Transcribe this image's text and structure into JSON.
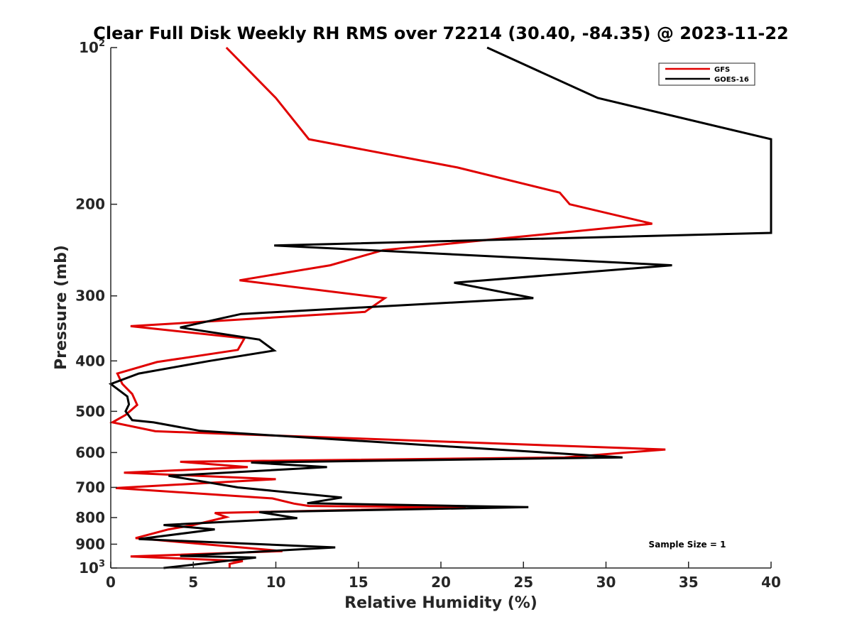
{
  "chart_data": {
    "type": "line",
    "title": "Clear Full Disk Weekly RH RMS over 72214 (30.40, -84.35) @ 2023-11-22",
    "xlabel": "Relative Humidity (%)",
    "ylabel": "Pressure (mb)",
    "xlim": [
      0,
      40
    ],
    "ylim": [
      100,
      1000
    ],
    "yscale": "log",
    "y_reversed": true,
    "xticks": [
      0,
      5,
      10,
      15,
      20,
      25,
      30,
      35,
      40
    ],
    "xtick_labels": [
      "0",
      "5",
      "10",
      "15",
      "20",
      "25",
      "30",
      "35",
      "40"
    ],
    "yticks": [
      {
        "value": 100,
        "label": "10",
        "exp": "2"
      },
      {
        "value": 200,
        "label": "200"
      },
      {
        "value": 300,
        "label": "300"
      },
      {
        "value": 400,
        "label": "400"
      },
      {
        "value": 500,
        "label": "500"
      },
      {
        "value": 600,
        "label": "600"
      },
      {
        "value": 700,
        "label": "700"
      },
      {
        "value": 800,
        "label": "800"
      },
      {
        "value": 900,
        "label": "900"
      },
      {
        "value": 1000,
        "label": "10",
        "exp": "3"
      }
    ],
    "legend": {
      "placement": "top-right"
    },
    "annotation": "Sample Size = 1",
    "series": [
      {
        "name": "GFS",
        "color": "#e00000",
        "points": [
          [
            7.0,
            100
          ],
          [
            10.0,
            125
          ],
          [
            12.0,
            150
          ],
          [
            21.0,
            170
          ],
          [
            27.2,
            190
          ],
          [
            27.8,
            200
          ],
          [
            32.8,
            218
          ],
          [
            16.5,
            245
          ],
          [
            13.3,
            262
          ],
          [
            7.8,
            280
          ],
          [
            16.6,
            303
          ],
          [
            15.4,
            322
          ],
          [
            1.2,
            343
          ],
          [
            8.1,
            362
          ],
          [
            7.7,
            381
          ],
          [
            2.8,
            402
          ],
          [
            0.4,
            423
          ],
          [
            0.7,
            443
          ],
          [
            1.3,
            463
          ],
          [
            1.6,
            486
          ],
          [
            0.9,
            508
          ],
          [
            0.1,
            525
          ],
          [
            2.7,
            546
          ],
          [
            33.6,
            592
          ],
          [
            27.5,
            613
          ],
          [
            4.2,
            625
          ],
          [
            8.3,
            640
          ],
          [
            0.8,
            656
          ],
          [
            10.0,
            675
          ],
          [
            0.3,
            702
          ],
          [
            9.8,
            735
          ],
          [
            11.1,
            752
          ],
          [
            12.0,
            760
          ],
          [
            21.5,
            765
          ],
          [
            6.3,
            784
          ],
          [
            7.0,
            798
          ],
          [
            5.0,
            827
          ],
          [
            3.5,
            843
          ],
          [
            1.5,
            876
          ],
          [
            10.4,
            928
          ],
          [
            1.2,
            950
          ],
          [
            8.0,
            970
          ],
          [
            7.2,
            982
          ],
          [
            7.2,
            1000
          ]
        ]
      },
      {
        "name": "GOES-16",
        "color": "#000000",
        "points": [
          [
            22.8,
            100
          ],
          [
            29.5,
            125
          ],
          [
            40.0,
            150
          ],
          [
            40.0,
            227
          ],
          [
            9.9,
            240
          ],
          [
            34.0,
            262
          ],
          [
            20.8,
            283
          ],
          [
            25.6,
            303
          ],
          [
            7.9,
            325
          ],
          [
            4.2,
            345
          ],
          [
            9.0,
            364
          ],
          [
            9.9,
            382
          ],
          [
            6.0,
            400
          ],
          [
            1.7,
            423
          ],
          [
            0.0,
            443
          ],
          [
            1.0,
            468
          ],
          [
            1.1,
            485
          ],
          [
            0.9,
            500
          ],
          [
            1.3,
            520
          ],
          [
            2.6,
            525
          ],
          [
            5.4,
            545
          ],
          [
            31.0,
            613
          ],
          [
            8.5,
            627
          ],
          [
            13.1,
            640
          ],
          [
            3.5,
            665
          ],
          [
            7.7,
            700
          ],
          [
            14.0,
            732
          ],
          [
            11.9,
            751
          ],
          [
            25.3,
            764
          ],
          [
            9.0,
            781
          ],
          [
            11.3,
            802
          ],
          [
            3.2,
            827
          ],
          [
            6.3,
            843
          ],
          [
            1.7,
            880
          ],
          [
            13.6,
            913
          ],
          [
            4.2,
            948
          ],
          [
            8.8,
            955
          ],
          [
            3.2,
            1000
          ]
        ]
      }
    ]
  }
}
